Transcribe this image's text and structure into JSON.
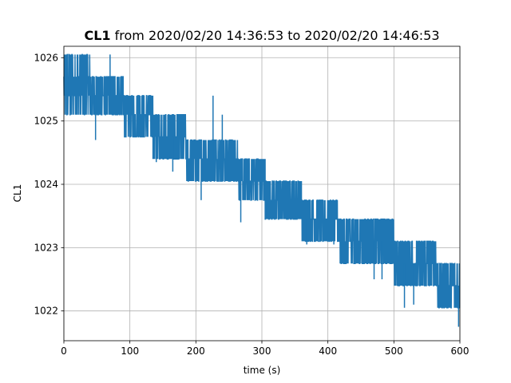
{
  "chart_data": {
    "type": "line",
    "title_bold": "CL1",
    "title_rest": " from 2020/02/20 14:36:53 to 2020/02/20 14:46:53",
    "xlabel": "time (s)",
    "ylabel": "CL1",
    "xlim": [
      0,
      600
    ],
    "ylim": [
      1021.53,
      1026.18
    ],
    "x_ticks": [
      0,
      100,
      200,
      300,
      400,
      500,
      600
    ],
    "y_ticks": [
      1022,
      1023,
      1024,
      1025,
      1026
    ],
    "grid": true,
    "series": [
      {
        "color": "#1f77b4",
        "segments": [
          {
            "x0": 0,
            "x1": 10,
            "levels": [
              1025.1,
              1025.4,
              1025.7,
              1026.05
            ]
          },
          {
            "x0": 10,
            "x1": 40,
            "levels": [
              1025.1,
              1025.4,
              1025.7,
              1026.05
            ]
          },
          {
            "x0": 40,
            "x1": 90,
            "levels": [
              1025.1,
              1025.4,
              1025.7
            ]
          },
          {
            "x0": 90,
            "x1": 135,
            "levels": [
              1024.75,
              1025.1,
              1025.4
            ]
          },
          {
            "x0": 135,
            "x1": 185,
            "levels": [
              1024.4,
              1024.75,
              1025.1
            ]
          },
          {
            "x0": 185,
            "x1": 265,
            "levels": [
              1024.05,
              1024.4,
              1024.7
            ]
          },
          {
            "x0": 265,
            "x1": 305,
            "levels": [
              1023.75,
              1024.05,
              1024.4
            ]
          },
          {
            "x0": 305,
            "x1": 360,
            "levels": [
              1023.45,
              1023.75,
              1024.05
            ]
          },
          {
            "x0": 360,
            "x1": 415,
            "levels": [
              1023.1,
              1023.45,
              1023.75
            ]
          },
          {
            "x0": 415,
            "x1": 500,
            "levels": [
              1022.75,
              1023.1,
              1023.45
            ]
          },
          {
            "x0": 500,
            "x1": 565,
            "levels": [
              1022.4,
              1022.75,
              1023.1
            ]
          },
          {
            "x0": 565,
            "x1": 600,
            "levels": [
              1022.05,
              1022.4,
              1022.75
            ]
          }
        ],
        "spikes": [
          {
            "x": 48,
            "y": 1024.7
          },
          {
            "x": 70,
            "y": 1026.05
          },
          {
            "x": 140,
            "y": 1024.35
          },
          {
            "x": 165,
            "y": 1024.2
          },
          {
            "x": 208,
            "y": 1023.75
          },
          {
            "x": 226,
            "y": 1025.4
          },
          {
            "x": 240,
            "y": 1025.1
          },
          {
            "x": 268,
            "y": 1023.4
          },
          {
            "x": 321,
            "y": 1023.45
          },
          {
            "x": 368,
            "y": 1023.05
          },
          {
            "x": 409,
            "y": 1023.05
          },
          {
            "x": 470,
            "y": 1022.5
          },
          {
            "x": 482,
            "y": 1022.5
          },
          {
            "x": 516,
            "y": 1022.05
          },
          {
            "x": 530,
            "y": 1022.1
          },
          {
            "x": 598,
            "y": 1021.75
          }
        ]
      }
    ]
  }
}
